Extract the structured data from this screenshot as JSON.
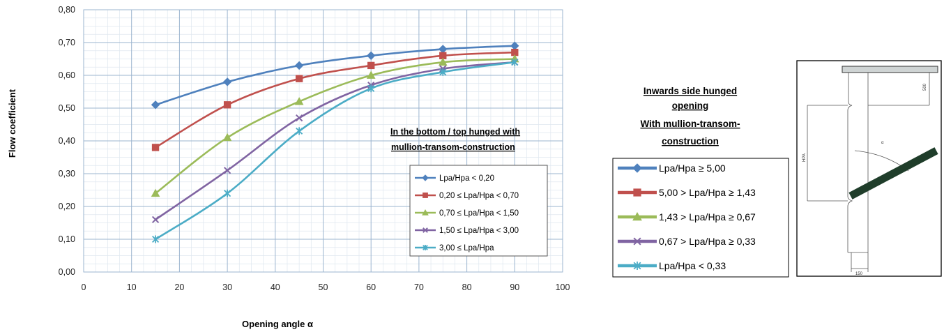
{
  "chart_data": {
    "type": "line",
    "x": [
      15,
      30,
      45,
      60,
      75,
      90
    ],
    "xlim": [
      0,
      100
    ],
    "ylim": [
      0,
      0.8
    ],
    "xticks": [
      "0",
      "10",
      "20",
      "30",
      "40",
      "50",
      "60",
      "70",
      "80",
      "90",
      "100"
    ],
    "yticks": [
      "0,00",
      "0,10",
      "0,20",
      "0,30",
      "0,40",
      "0,50",
      "0,60",
      "0,70",
      "0,80"
    ],
    "xlabel": "Opening angle α",
    "ylabel": "Flow coefficient",
    "grid": true,
    "legend_position": "bottom-right inside plot",
    "annotation_lines": [
      "In the bottom / top hunged with",
      "mullion-transom-construction"
    ],
    "series": [
      {
        "name": "Lpa/Hpa < 0,20",
        "marker": "diamond",
        "color": "#4F81BD",
        "values": [
          0.51,
          0.58,
          0.63,
          0.66,
          0.68,
          0.69
        ]
      },
      {
        "name": "0,20 ≤ Lpa/Hpa < 0,70",
        "marker": "square",
        "color": "#C0504D",
        "values": [
          0.38,
          0.51,
          0.59,
          0.63,
          0.66,
          0.67
        ]
      },
      {
        "name": "0,70 ≤ Lpa/Hpa < 1,50",
        "marker": "triangle",
        "color": "#9BBB59",
        "values": [
          0.24,
          0.41,
          0.52,
          0.6,
          0.64,
          0.65
        ]
      },
      {
        "name": "1,50 ≤ Lpa/Hpa < 3,00",
        "marker": "x",
        "color": "#8064A2",
        "values": [
          0.16,
          0.31,
          0.47,
          0.57,
          0.62,
          0.64
        ]
      },
      {
        "name": "3,00 ≤ Lpa/Hpa",
        "marker": "star",
        "color": "#4BACC6",
        "values": [
          0.1,
          0.24,
          0.43,
          0.56,
          0.61,
          0.64
        ]
      }
    ]
  },
  "side_panel": {
    "title_lines": [
      "Inwards side hunged",
      "opening",
      "With mullion-transom-",
      "construction"
    ],
    "legend_items": [
      {
        "label": "Lpa/Hpa ≥ 5,00",
        "marker": "diamond",
        "color": "#4F81BD"
      },
      {
        "label": "5,00 > Lpa/Hpa ≥ 1,43",
        "marker": "square",
        "color": "#C0504D"
      },
      {
        "label": "1,43 > Lpa/Hpa ≥ 0,67",
        "marker": "triangle",
        "color": "#9BBB59"
      },
      {
        "label": "0,67 > Lpa/Hpa ≥ 0,33",
        "marker": "x",
        "color": "#8064A2"
      },
      {
        "label": "Lpa/Hpa < 0,33",
        "marker": "star",
        "color": "#4BACC6"
      }
    ]
  },
  "drawing": {
    "dim_top": "500",
    "dim_side": "HPA",
    "dim_angle": "α",
    "dim_bottom": "150"
  }
}
